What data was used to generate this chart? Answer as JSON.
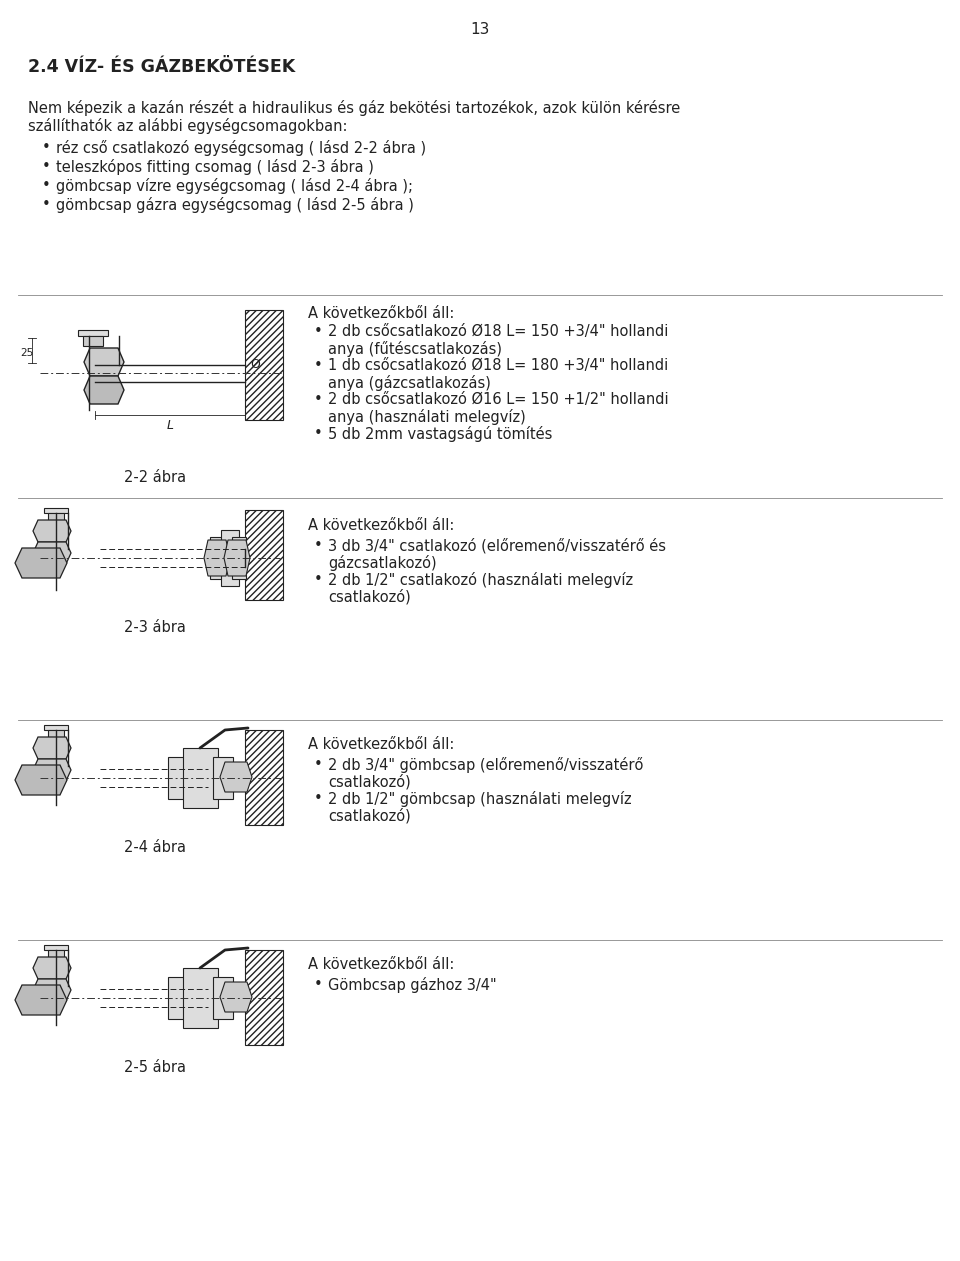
{
  "page_number": "13",
  "section_title": "2.4 VÍZ- ÉS GÁZBEKÖTÉSEK",
  "intro_line1": "Nem képezik a kazán részét a hidraulikus és gáz bekötési tartozékok, azok külön kérésre",
  "intro_line2": "szállíthatók az alábbi egységcsomagokban:",
  "intro_bullets": [
    "réz cső csatlakozó egységcsomag ( lásd 2-2 ábra )",
    "teleszkópos fitting csomag ( lásd 2-3 ábra )",
    "gömbcsap vízre egységcsomag ( lásd 2-4 ábra );",
    "gömbcsap gázra egységcsomag ( lásd 2-5 ábra )"
  ],
  "sections": [
    {
      "label": "2-2 ábra",
      "header": "A következőkből áll:",
      "bullets": [
        "2 db csőcsatlakozó Ø18 L= 150 +3/4\" hollandi",
        "anya (fűtéscsatlakozás)",
        "1 db csőcsatlakozó Ø18 L= 180 +3/4\" hollandi",
        "anya (gázcsatlakozás)",
        "2 db csőcsatlakozó Ø16 L= 150 +1/2\" hollandi",
        "anya (használati melegvíz)",
        "5 db 2mm vastagságú tömítés"
      ],
      "bullet_starts": [
        true,
        false,
        true,
        false,
        true,
        false,
        true
      ]
    },
    {
      "label": "2-3 ábra",
      "header": "A következőkből áll:",
      "bullets": [
        "3 db 3/4\" csatlakozó (előremenő/visszatérő és",
        "gázcsatlakozó)",
        "2 db 1/2\" csatlakozó (használati melegvíz",
        "csatlakozó)"
      ],
      "bullet_starts": [
        true,
        false,
        true,
        false
      ]
    },
    {
      "label": "2-4 ábra",
      "header": "A következőkből áll:",
      "bullets": [
        "2 db 3/4\" gömbcsap (előremenő/visszatérő",
        "csatlakozó)",
        "2 db 1/2\" gömbcsap (használati melegvíz",
        "csatlakozó)"
      ],
      "bullet_starts": [
        true,
        false,
        true,
        false
      ]
    },
    {
      "label": "2-5 ábra",
      "header": "A következőkből áll:",
      "bullets": [
        "Gömbcsap gázhoz 3/4\""
      ],
      "bullet_starts": [
        true
      ]
    }
  ],
  "bg_color": "#ffffff",
  "text_color": "#222222",
  "font_size_title": 12.5,
  "font_size_body": 10.5,
  "font_size_page": 11
}
